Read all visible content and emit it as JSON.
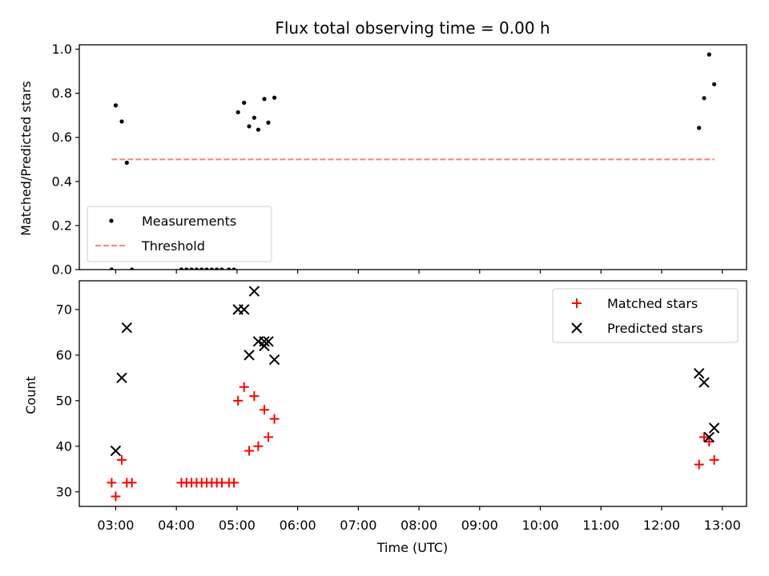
{
  "chart_data": [
    {
      "type": "scatter",
      "title": "Flux total observing time = 0.00 h",
      "xlabel": "",
      "ylabel": "Matched/Predicted stars",
      "xlim": [
        "02:24",
        "13:24"
      ],
      "ylim": [
        0,
        1.02
      ],
      "yticks": [
        0.0,
        0.2,
        0.4,
        0.6,
        0.8,
        1.0
      ],
      "ytick_labels": [
        "0.0",
        "0.2",
        "0.4",
        "0.6",
        "0.8",
        "1.0"
      ],
      "legend_position": "lower-left",
      "grid": false,
      "series": [
        {
          "name": "Measurements",
          "kind": "scatter",
          "marker": "dot",
          "color": "#000000",
          "points": [
            [
              "02:56",
              0.0
            ],
            [
              "03:00",
              0.745
            ],
            [
              "03:06",
              0.672
            ],
            [
              "03:11",
              0.485
            ],
            [
              "03:16",
              0.0
            ],
            [
              "04:05",
              0.0
            ],
            [
              "04:10",
              0.0
            ],
            [
              "04:15",
              0.0
            ],
            [
              "04:20",
              0.0
            ],
            [
              "04:25",
              0.0
            ],
            [
              "04:30",
              0.0
            ],
            [
              "04:35",
              0.0
            ],
            [
              "04:40",
              0.0
            ],
            [
              "04:45",
              0.0
            ],
            [
              "04:52",
              0.0
            ],
            [
              "04:57",
              0.0
            ],
            [
              "05:01",
              0.714
            ],
            [
              "05:07",
              0.757
            ],
            [
              "05:12",
              0.65
            ],
            [
              "05:17",
              0.689
            ],
            [
              "05:21",
              0.635
            ],
            [
              "05:27",
              0.774
            ],
            [
              "05:31",
              0.667
            ],
            [
              "05:37",
              0.78
            ],
            [
              "12:37",
              0.643
            ],
            [
              "12:42",
              0.778
            ],
            [
              "12:47",
              0.976
            ],
            [
              "12:52",
              0.841
            ]
          ]
        },
        {
          "name": "Threshold",
          "kind": "line",
          "style": "dashed",
          "color": "#ff7f7f",
          "points": [
            [
              "02:56",
              0.5
            ],
            [
              "12:52",
              0.5
            ]
          ]
        }
      ]
    },
    {
      "type": "scatter",
      "title": "",
      "xlabel": "Time (UTC)",
      "ylabel": "Count",
      "xlim": [
        "02:24",
        "13:24"
      ],
      "ylim": [
        26.8,
        76.3
      ],
      "xticks": [
        "03:00",
        "04:00",
        "05:00",
        "06:00",
        "07:00",
        "08:00",
        "09:00",
        "10:00",
        "11:00",
        "12:00",
        "13:00"
      ],
      "xtick_labels": [
        "03:00",
        "04:00",
        "05:00",
        "06:00",
        "07:00",
        "08:00",
        "09:00",
        "10:00",
        "11:00",
        "12:00",
        "13:00"
      ],
      "yticks": [
        30,
        40,
        50,
        60,
        70
      ],
      "ytick_labels": [
        "30",
        "40",
        "50",
        "60",
        "70"
      ],
      "legend_position": "upper-right",
      "grid": false,
      "series": [
        {
          "name": "Matched stars",
          "kind": "scatter",
          "marker": "plus",
          "color": "#ff0000",
          "points": [
            [
              "02:56",
              32
            ],
            [
              "03:00",
              29
            ],
            [
              "03:06",
              37
            ],
            [
              "03:11",
              32
            ],
            [
              "03:16",
              32
            ],
            [
              "04:05",
              32
            ],
            [
              "04:10",
              32
            ],
            [
              "04:15",
              32
            ],
            [
              "04:20",
              32
            ],
            [
              "04:25",
              32
            ],
            [
              "04:30",
              32
            ],
            [
              "04:35",
              32
            ],
            [
              "04:40",
              32
            ],
            [
              "04:45",
              32
            ],
            [
              "04:52",
              32
            ],
            [
              "04:57",
              32
            ],
            [
              "05:01",
              50
            ],
            [
              "05:07",
              53
            ],
            [
              "05:12",
              39
            ],
            [
              "05:17",
              51
            ],
            [
              "05:21",
              40
            ],
            [
              "05:27",
              48
            ],
            [
              "05:31",
              42
            ],
            [
              "05:37",
              46
            ],
            [
              "12:37",
              36
            ],
            [
              "12:42",
              42
            ],
            [
              "12:47",
              41
            ],
            [
              "12:52",
              37
            ]
          ]
        },
        {
          "name": "Predicted stars",
          "kind": "scatter",
          "marker": "x",
          "color": "#000000",
          "points": [
            [
              "03:00",
              39
            ],
            [
              "03:06",
              55
            ],
            [
              "03:11",
              66
            ],
            [
              "05:01",
              70
            ],
            [
              "05:07",
              70
            ],
            [
              "05:12",
              60
            ],
            [
              "05:17",
              74
            ],
            [
              "05:21",
              63
            ],
            [
              "05:27",
              62
            ],
            [
              "05:27",
              63
            ],
            [
              "05:31",
              63
            ],
            [
              "05:37",
              59
            ],
            [
              "12:37",
              56
            ],
            [
              "12:42",
              54
            ],
            [
              "12:47",
              42
            ],
            [
              "12:52",
              44
            ]
          ]
        }
      ]
    }
  ]
}
